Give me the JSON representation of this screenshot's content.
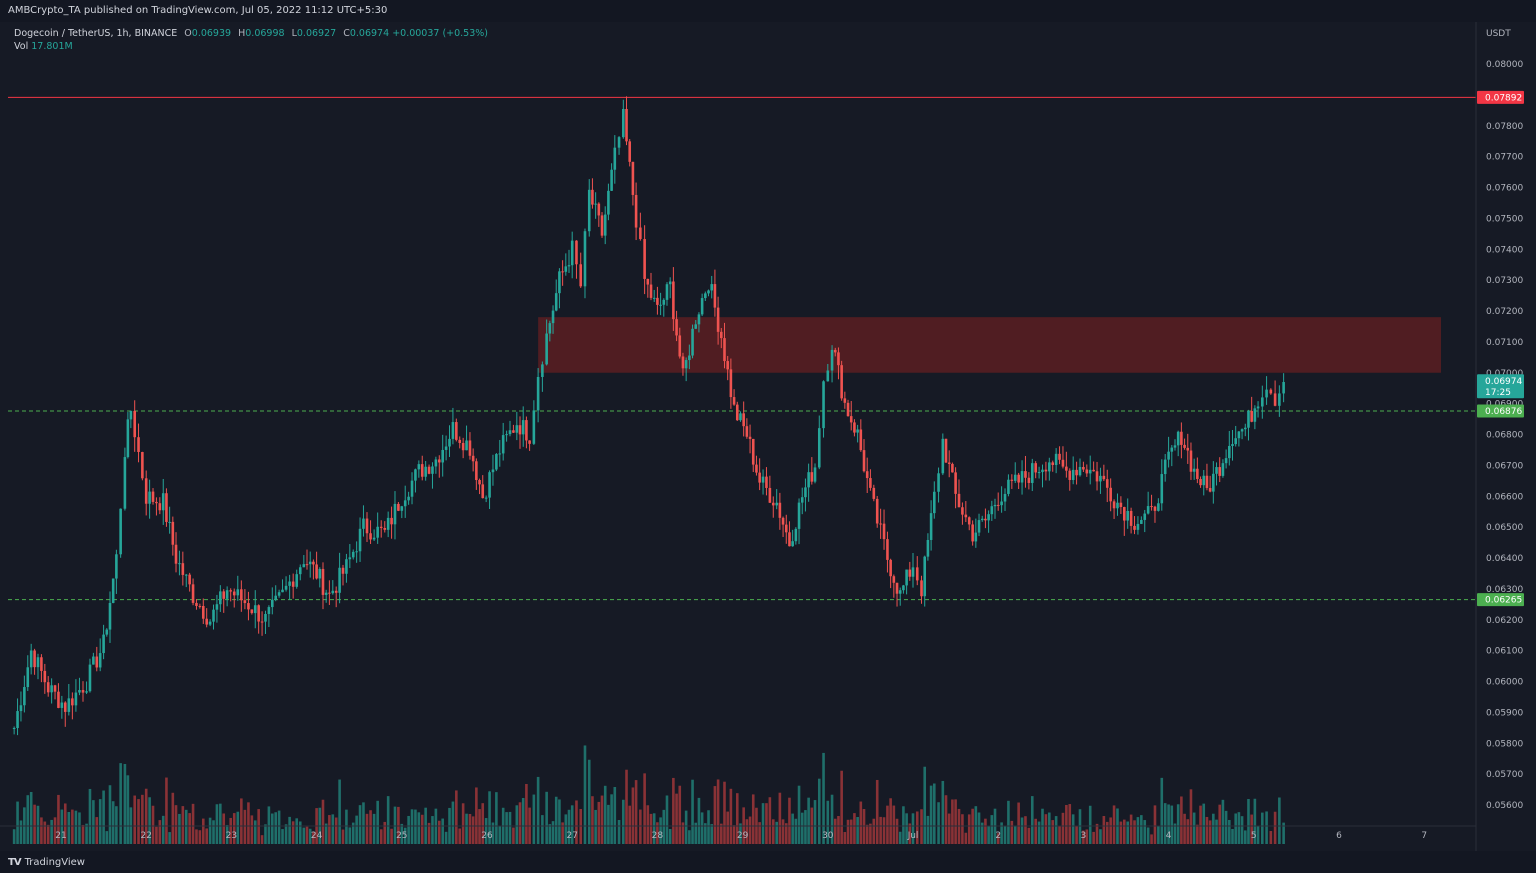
{
  "header": {
    "publish_line": "AMBCrypto_TA published on TradingView.com, Jul 05, 2022 11:12 UTC+5:30"
  },
  "legend": {
    "symbol": "Dogecoin / TetherUS, 1h, BINANCE",
    "o_label": "O",
    "o_val": "0.06939",
    "h_label": "H",
    "h_val": "0.06998",
    "l_label": "L",
    "l_val": "0.06927",
    "c_label": "C",
    "c_val": "0.06974",
    "change": "+0.00037 (+0.53%)",
    "vol_label": "Vol",
    "vol_val": "17.801M"
  },
  "price_axis": {
    "currency": "USDT",
    "ticks": [
      "0.08000",
      "0.07800",
      "0.07700",
      "0.07600",
      "0.07500",
      "0.07400",
      "0.07300",
      "0.07200",
      "0.07100",
      "0.07000",
      "0.06900",
      "0.06800",
      "0.06700",
      "0.06600",
      "0.06500",
      "0.06400",
      "0.06300",
      "0.06200",
      "0.06100",
      "0.06000",
      "0.05900",
      "0.05800",
      "0.05700",
      "0.05600"
    ]
  },
  "time_axis": {
    "labels": [
      "21",
      "22",
      "23",
      "24",
      "25",
      "26",
      "27",
      "28",
      "29",
      "30",
      "Jul",
      "2",
      "3",
      "4",
      "5",
      "6",
      "7"
    ]
  },
  "price_tags": {
    "resistance": "0.07892",
    "current": "0.06974",
    "countdown": "17:25",
    "support_upper": "0.06876",
    "support_lower": "0.06265"
  },
  "colors": {
    "up": "#26a69a",
    "down": "#ef5350",
    "up_vol": "#1f6f6a",
    "down_vol": "#8a3236",
    "resistance_line": "#f23645",
    "support_line": "#4caf50",
    "zone_fill": "#5a1e22",
    "background": "#161a25"
  },
  "footer": {
    "brand": "TradingView",
    "logo_icon": "tradingview-logo-icon"
  },
  "chart_data": {
    "type": "candlestick",
    "symbol": "Dogecoin / TetherUS",
    "interval": "1h",
    "exchange": "BINANCE",
    "ylim": [
      0.055,
      0.081
    ],
    "y_scale": "linear",
    "grid": false,
    "x_range": [
      "21",
      "7"
    ],
    "horizontal_levels": [
      {
        "value": 0.07892,
        "style": "solid",
        "color": "#f23645"
      },
      {
        "value": 0.06876,
        "style": "dashed",
        "color": "#4caf50"
      },
      {
        "value": 0.06265,
        "style": "dashed",
        "color": "#4caf50"
      }
    ],
    "zones": [
      {
        "y_low": 0.07,
        "y_high": 0.0718,
        "x_start": "26",
        "x_end": "6",
        "color": "#5a1e22"
      }
    ],
    "close_path": [
      {
        "x": 20.45,
        "c": 0.0585
      },
      {
        "x": 20.65,
        "c": 0.061
      },
      {
        "x": 20.85,
        "c": 0.0598
      },
      {
        "x": 21.05,
        "c": 0.0592
      },
      {
        "x": 21.3,
        "c": 0.06
      },
      {
        "x": 21.5,
        "c": 0.0612
      },
      {
        "x": 21.65,
        "c": 0.064
      },
      {
        "x": 21.75,
        "c": 0.0675
      },
      {
        "x": 21.82,
        "c": 0.0688
      },
      {
        "x": 22.0,
        "c": 0.066
      },
      {
        "x": 22.2,
        "c": 0.0658
      },
      {
        "x": 22.35,
        "c": 0.064
      },
      {
        "x": 22.55,
        "c": 0.0628
      },
      {
        "x": 22.75,
        "c": 0.062
      },
      {
        "x": 22.95,
        "c": 0.063
      },
      {
        "x": 23.2,
        "c": 0.0625
      },
      {
        "x": 23.4,
        "c": 0.062
      },
      {
        "x": 23.6,
        "c": 0.0628
      },
      {
        "x": 23.85,
        "c": 0.064
      },
      {
        "x": 24.0,
        "c": 0.0635
      },
      {
        "x": 24.15,
        "c": 0.0628
      },
      {
        "x": 24.35,
        "c": 0.0637
      },
      {
        "x": 24.55,
        "c": 0.065
      },
      {
        "x": 24.8,
        "c": 0.0648
      },
      {
        "x": 25.0,
        "c": 0.066
      },
      {
        "x": 25.2,
        "c": 0.0668
      },
      {
        "x": 25.4,
        "c": 0.0672
      },
      {
        "x": 25.6,
        "c": 0.0682
      },
      {
        "x": 25.8,
        "c": 0.0676
      },
      {
        "x": 25.95,
        "c": 0.066
      },
      {
        "x": 26.15,
        "c": 0.0675
      },
      {
        "x": 26.35,
        "c": 0.0684
      },
      {
        "x": 26.5,
        "c": 0.068
      },
      {
        "x": 26.6,
        "c": 0.07
      },
      {
        "x": 26.7,
        "c": 0.0712
      },
      {
        "x": 26.85,
        "c": 0.073
      },
      {
        "x": 27.0,
        "c": 0.074
      },
      {
        "x": 27.1,
        "c": 0.0728
      },
      {
        "x": 27.2,
        "c": 0.0758
      },
      {
        "x": 27.35,
        "c": 0.0745
      },
      {
        "x": 27.5,
        "c": 0.077
      },
      {
        "x": 27.6,
        "c": 0.0782
      },
      {
        "x": 27.75,
        "c": 0.075
      },
      {
        "x": 27.85,
        "c": 0.073
      },
      {
        "x": 28.0,
        "c": 0.072
      },
      {
        "x": 28.15,
        "c": 0.0728
      },
      {
        "x": 28.3,
        "c": 0.0698
      },
      {
        "x": 28.45,
        "c": 0.0718
      },
      {
        "x": 28.6,
        "c": 0.073
      },
      {
        "x": 28.75,
        "c": 0.0712
      },
      {
        "x": 28.9,
        "c": 0.0688
      },
      {
        "x": 29.05,
        "c": 0.068
      },
      {
        "x": 29.2,
        "c": 0.0665
      },
      {
        "x": 29.4,
        "c": 0.0658
      },
      {
        "x": 29.55,
        "c": 0.0645
      },
      {
        "x": 29.7,
        "c": 0.066
      },
      {
        "x": 29.85,
        "c": 0.067
      },
      {
        "x": 29.95,
        "c": 0.0698
      },
      {
        "x": 30.05,
        "c": 0.071
      },
      {
        "x": 30.2,
        "c": 0.069
      },
      {
        "x": 30.35,
        "c": 0.068
      },
      {
        "x": 30.5,
        "c": 0.066
      },
      {
        "x": 30.7,
        "c": 0.064
      },
      {
        "x": 30.85,
        "c": 0.0628
      },
      {
        "x": 31.0,
        "c": 0.0638
      },
      {
        "x": 31.1,
        "c": 0.063
      },
      {
        "x": 31.25,
        "c": 0.066
      },
      {
        "x": 31.35,
        "c": 0.0678
      },
      {
        "x": 31.5,
        "c": 0.066
      },
      {
        "x": 31.7,
        "c": 0.0648
      },
      {
        "x": 31.85,
        "c": 0.0652
      },
      {
        "x": 32.0,
        "c": 0.066
      },
      {
        "x": 32.2,
        "c": 0.0664
      },
      {
        "x": 32.4,
        "c": 0.0668
      },
      {
        "x": 32.6,
        "c": 0.0672
      },
      {
        "x": 32.8,
        "c": 0.0668
      },
      {
        "x": 33.0,
        "c": 0.067
      },
      {
        "x": 33.2,
        "c": 0.0666
      },
      {
        "x": 33.4,
        "c": 0.0658
      },
      {
        "x": 33.6,
        "c": 0.0652
      },
      {
        "x": 33.8,
        "c": 0.0654
      },
      {
        "x": 34.0,
        "c": 0.0672
      },
      {
        "x": 34.15,
        "c": 0.068
      },
      {
        "x": 34.3,
        "c": 0.0668
      },
      {
        "x": 34.45,
        "c": 0.0662
      },
      {
        "x": 34.6,
        "c": 0.067
      },
      {
        "x": 34.75,
        "c": 0.068
      },
      {
        "x": 34.9,
        "c": 0.0682
      },
      {
        "x": 35.05,
        "c": 0.0692
      },
      {
        "x": 35.15,
        "c": 0.0697
      },
      {
        "x": 35.25,
        "c": 0.0692
      },
      {
        "x": 35.35,
        "c": 0.0697
      }
    ]
  }
}
